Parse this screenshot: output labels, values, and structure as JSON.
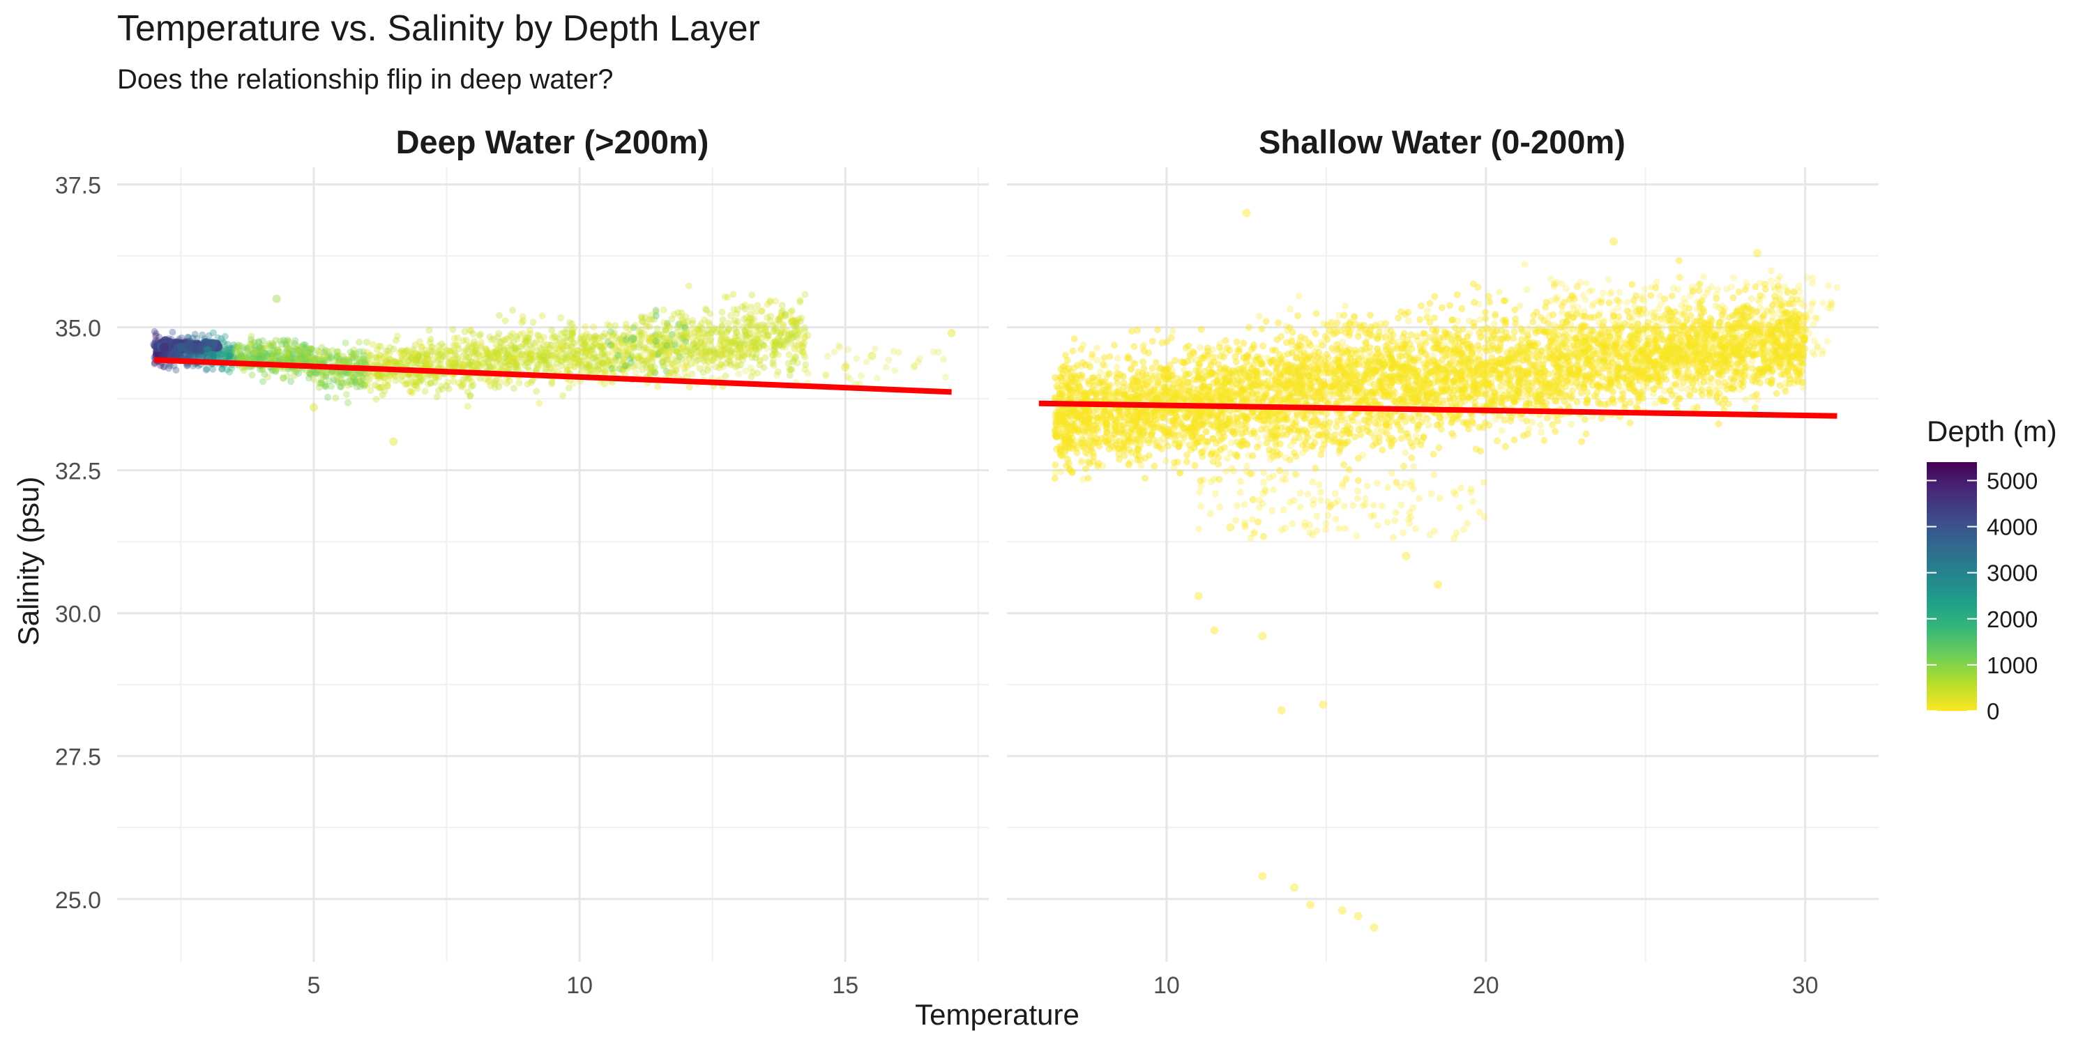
{
  "chart_data": {
    "type": "scatter",
    "title": "Temperature vs. Salinity by Depth Layer",
    "subtitle": "Does the relationship flip in deep water?",
    "xlabel": "Temperature",
    "ylabel": "Salinity (psu)",
    "ylim": [
      23.9,
      37.8
    ],
    "yticks": [
      25.0,
      27.5,
      30.0,
      32.5,
      35.0,
      37.5
    ],
    "grid": true,
    "legend": {
      "title": "Depth (m)",
      "placement": "right",
      "ticks": [
        0,
        1000,
        2000,
        3000,
        4000,
        5000
      ],
      "range": [
        0,
        5400
      ],
      "colors": [
        "#fde725",
        "#b5de2b",
        "#6ece58",
        "#35b779",
        "#1f9e89",
        "#26828e",
        "#31688e",
        "#3e4989",
        "#482878",
        "#440154"
      ]
    },
    "trend_color": "#ff0000",
    "facets": [
      {
        "name": "Deep Water (>200m)",
        "xlim": [
          1.3,
          17.7
        ],
        "xticks": [
          5,
          10,
          15
        ],
        "trend": [
          [
            2.0,
            34.43
          ],
          [
            17.0,
            33.87
          ]
        ],
        "points_note": "dense band rising from (2, 34.7) to (14, 35.1), sparse points 33.0–35.5",
        "samples": [
          {
            "x": 2.0,
            "y": 34.7,
            "depth": 4200
          },
          {
            "x": 2.5,
            "y": 34.65,
            "depth": 3500
          },
          {
            "x": 3.0,
            "y": 34.6,
            "depth": 2500
          },
          {
            "x": 4.0,
            "y": 34.5,
            "depth": 1200
          },
          {
            "x": 6.0,
            "y": 34.3,
            "depth": 600
          },
          {
            "x": 8.0,
            "y": 34.3,
            "depth": 400
          },
          {
            "x": 10.0,
            "y": 34.4,
            "depth": 300
          },
          {
            "x": 11.0,
            "y": 34.8,
            "depth": 1500
          },
          {
            "x": 12.0,
            "y": 34.9,
            "depth": 350
          },
          {
            "x": 14.0,
            "y": 35.1,
            "depth": 250
          },
          {
            "x": 4.3,
            "y": 35.5,
            "depth": 800
          },
          {
            "x": 15.5,
            "y": 34.5,
            "depth": 220
          },
          {
            "x": 17.0,
            "y": 34.9,
            "depth": 210
          },
          {
            "x": 6.5,
            "y": 33.0,
            "depth": 230
          },
          {
            "x": 5.0,
            "y": 33.6,
            "depth": 260
          },
          {
            "x": 15.0,
            "y": 34.3,
            "depth": 230
          }
        ]
      },
      {
        "name": "Shallow Water (0-200m)",
        "xlim": [
          5.0,
          32.3
        ],
        "xticks": [
          10,
          20,
          30
        ],
        "trend": [
          [
            6.0,
            33.67
          ],
          [
            31.0,
            33.45
          ]
        ],
        "points_note": "dense cloud 32.5–35.5, stray low-salinity points down to 24.5",
        "samples": [
          {
            "x": 12.5,
            "y": 37.0,
            "depth": 20
          },
          {
            "x": 24.0,
            "y": 36.5,
            "depth": 10
          },
          {
            "x": 28.5,
            "y": 36.3,
            "depth": 10
          },
          {
            "x": 30.0,
            "y": 35.2,
            "depth": 20
          },
          {
            "x": 12.0,
            "y": 31.5,
            "depth": 10
          },
          {
            "x": 11.0,
            "y": 30.3,
            "depth": 10
          },
          {
            "x": 11.5,
            "y": 29.7,
            "depth": 5
          },
          {
            "x": 13.0,
            "y": 29.6,
            "depth": 5
          },
          {
            "x": 13.6,
            "y": 28.3,
            "depth": 5
          },
          {
            "x": 14.9,
            "y": 28.4,
            "depth": 5
          },
          {
            "x": 13.0,
            "y": 25.4,
            "depth": 5
          },
          {
            "x": 14.0,
            "y": 25.2,
            "depth": 5
          },
          {
            "x": 14.5,
            "y": 24.9,
            "depth": 5
          },
          {
            "x": 15.5,
            "y": 24.8,
            "depth": 5
          },
          {
            "x": 16.0,
            "y": 24.7,
            "depth": 5
          },
          {
            "x": 16.5,
            "y": 24.5,
            "depth": 5
          },
          {
            "x": 18.5,
            "y": 30.5,
            "depth": 10
          },
          {
            "x": 17.5,
            "y": 31.0,
            "depth": 10
          }
        ]
      }
    ]
  }
}
